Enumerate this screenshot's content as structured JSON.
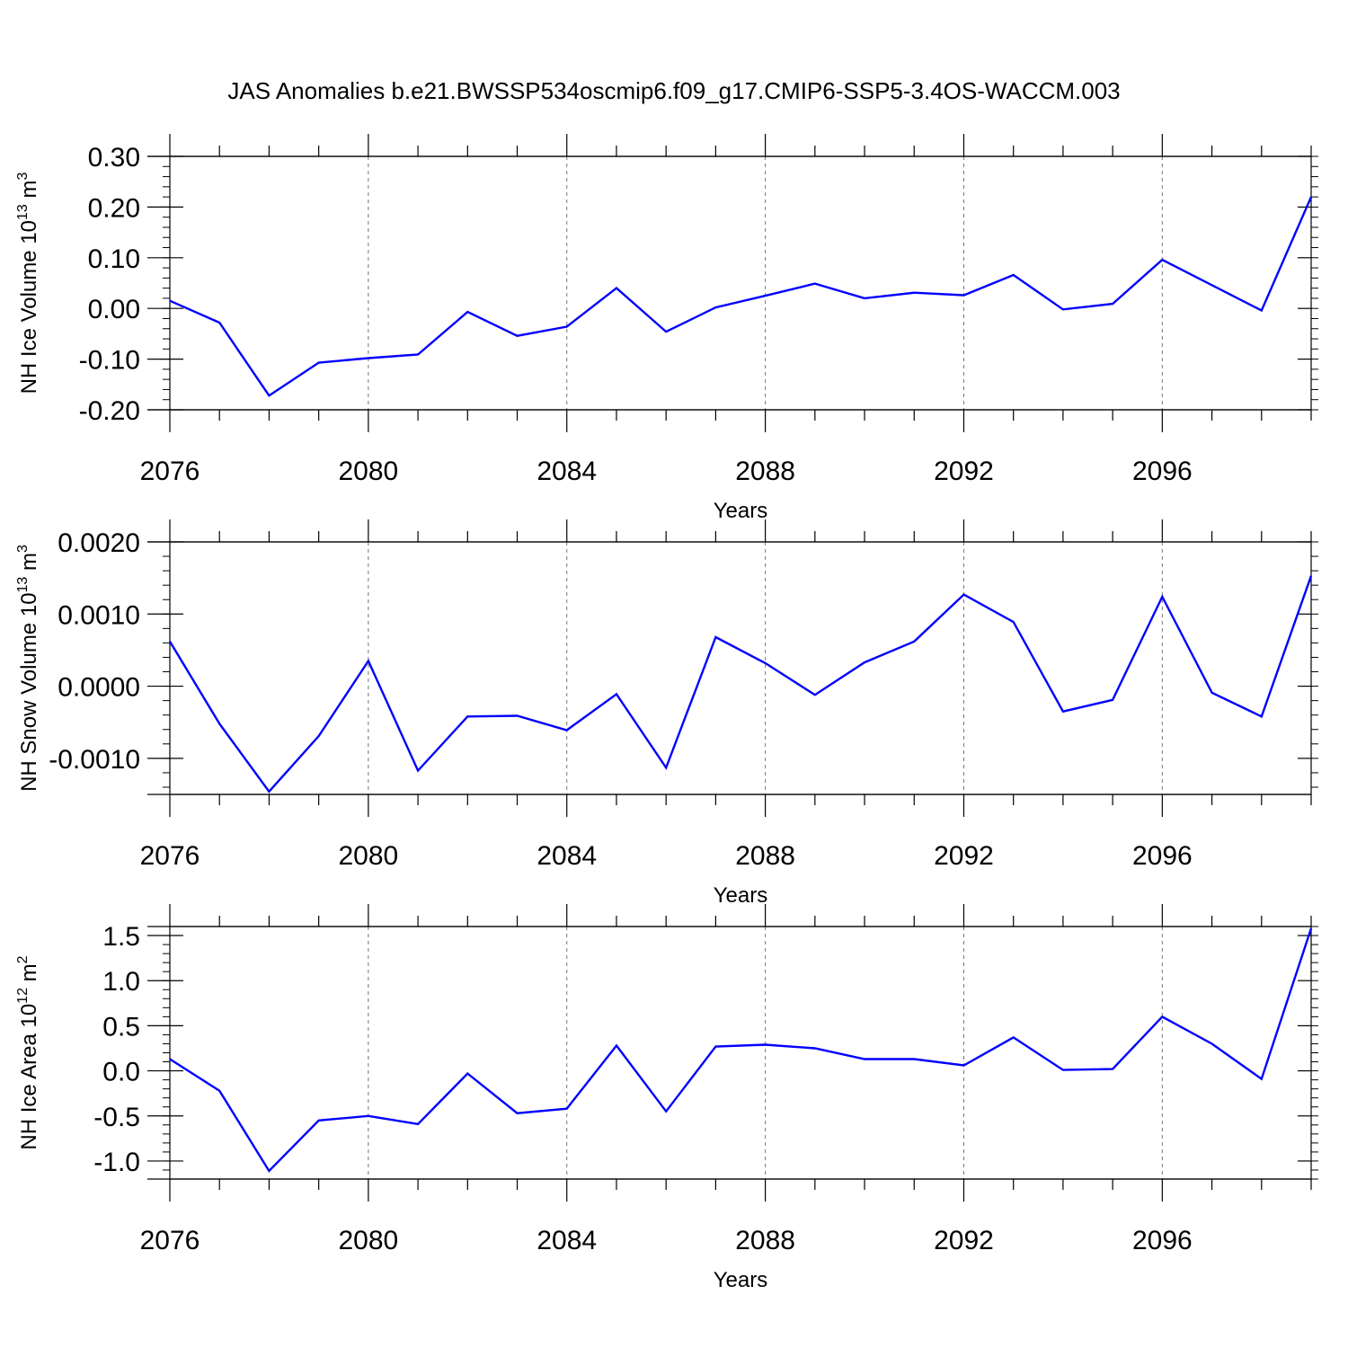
{
  "title": "JAS Anomalies b.e21.BWSSP534oscmip6.f09_g17.CMIP6-SSP5-3.4OS-WACCM.003",
  "line_color": "#0000ff",
  "chart_data": [
    {
      "type": "line",
      "ylabel_text": "NH Ice Volume 10",
      "ylabel_sup": "13",
      "ylabel_unit": "m",
      "ylabel_unit_sup": "3",
      "xlabel": "Years",
      "xlim": [
        2076,
        2099
      ],
      "ylim": [
        -0.2,
        0.3
      ],
      "yticks": [
        -0.2,
        -0.1,
        0.0,
        0.1,
        0.2,
        0.3
      ],
      "ytick_labels": [
        "-0.20",
        "-0.10",
        "0.00",
        "0.10",
        "0.20",
        "0.30"
      ],
      "yminor_step": 0.02,
      "xticks": [
        2076,
        2080,
        2084,
        2088,
        2092,
        2096
      ],
      "xtick_labels": [
        "2076",
        "2080",
        "2084",
        "2088",
        "2092",
        "2096"
      ],
      "x": [
        2076,
        2077,
        2078,
        2079,
        2080,
        2081,
        2082,
        2083,
        2084,
        2085,
        2086,
        2087,
        2088,
        2089,
        2090,
        2091,
        2092,
        2093,
        2094,
        2095,
        2096,
        2097,
        2098,
        2099
      ],
      "values": [
        0.015,
        -0.028,
        -0.172,
        -0.107,
        -0.098,
        -0.091,
        -0.007,
        -0.054,
        -0.036,
        0.04,
        -0.046,
        0.002,
        0.025,
        0.049,
        0.02,
        0.031,
        0.026,
        0.066,
        -0.002,
        0.009,
        0.096,
        0.046,
        -0.004,
        0.22
      ]
    },
    {
      "type": "line",
      "ylabel_text": "NH Snow Volume 10",
      "ylabel_sup": "13",
      "ylabel_unit": "m",
      "ylabel_unit_sup": "3",
      "xlabel": "Years",
      "xlim": [
        2076,
        2099
      ],
      "ylim": [
        -0.0015,
        0.002
      ],
      "yticks": [
        -0.001,
        0.0,
        0.001,
        0.002
      ],
      "ytick_labels": [
        "-0.0010",
        "0.0000",
        "0.0010",
        "0.0020"
      ],
      "yminor_step": 0.0002,
      "xticks": [
        2076,
        2080,
        2084,
        2088,
        2092,
        2096
      ],
      "xtick_labels": [
        "2076",
        "2080",
        "2084",
        "2088",
        "2092",
        "2096"
      ],
      "x": [
        2076,
        2077,
        2078,
        2079,
        2080,
        2081,
        2082,
        2083,
        2084,
        2085,
        2086,
        2087,
        2088,
        2089,
        2090,
        2091,
        2092,
        2093,
        2094,
        2095,
        2096,
        2097,
        2098,
        2099
      ],
      "values": [
        0.00062,
        -0.00052,
        -0.00146,
        -0.00069,
        0.00035,
        -0.00117,
        -0.00042,
        -0.00041,
        -0.00061,
        -0.00011,
        -0.00113,
        0.00068,
        0.00032,
        -0.00012,
        0.00033,
        0.00062,
        0.00127,
        0.00089,
        -0.00035,
        -0.00019,
        0.00124,
        -9e-05,
        -0.00042,
        0.00153
      ]
    },
    {
      "type": "line",
      "ylabel_text": "NH Ice Area 10",
      "ylabel_sup": "12",
      "ylabel_unit": "m",
      "ylabel_unit_sup": "2",
      "xlabel": "Years",
      "xlim": [
        2076,
        2099
      ],
      "ylim": [
        -1.2,
        1.6
      ],
      "yticks": [
        -1.0,
        -0.5,
        0.0,
        0.5,
        1.0,
        1.5
      ],
      "ytick_labels": [
        "-1.0",
        "-0.5",
        "0.0",
        "0.5",
        "1.0",
        "1.5"
      ],
      "yminor_step": 0.1,
      "xticks": [
        2076,
        2080,
        2084,
        2088,
        2092,
        2096
      ],
      "xtick_labels": [
        "2076",
        "2080",
        "2084",
        "2088",
        "2092",
        "2096"
      ],
      "x": [
        2076,
        2077,
        2078,
        2079,
        2080,
        2081,
        2082,
        2083,
        2084,
        2085,
        2086,
        2087,
        2088,
        2089,
        2090,
        2091,
        2092,
        2093,
        2094,
        2095,
        2096,
        2097,
        2098,
        2099
      ],
      "values": [
        0.13,
        -0.22,
        -1.11,
        -0.55,
        -0.5,
        -0.59,
        -0.03,
        -0.47,
        -0.42,
        0.28,
        -0.45,
        0.27,
        0.29,
        0.25,
        0.13,
        0.13,
        0.06,
        0.37,
        0.01,
        0.02,
        0.6,
        0.3,
        -0.09,
        1.58
      ]
    }
  ]
}
